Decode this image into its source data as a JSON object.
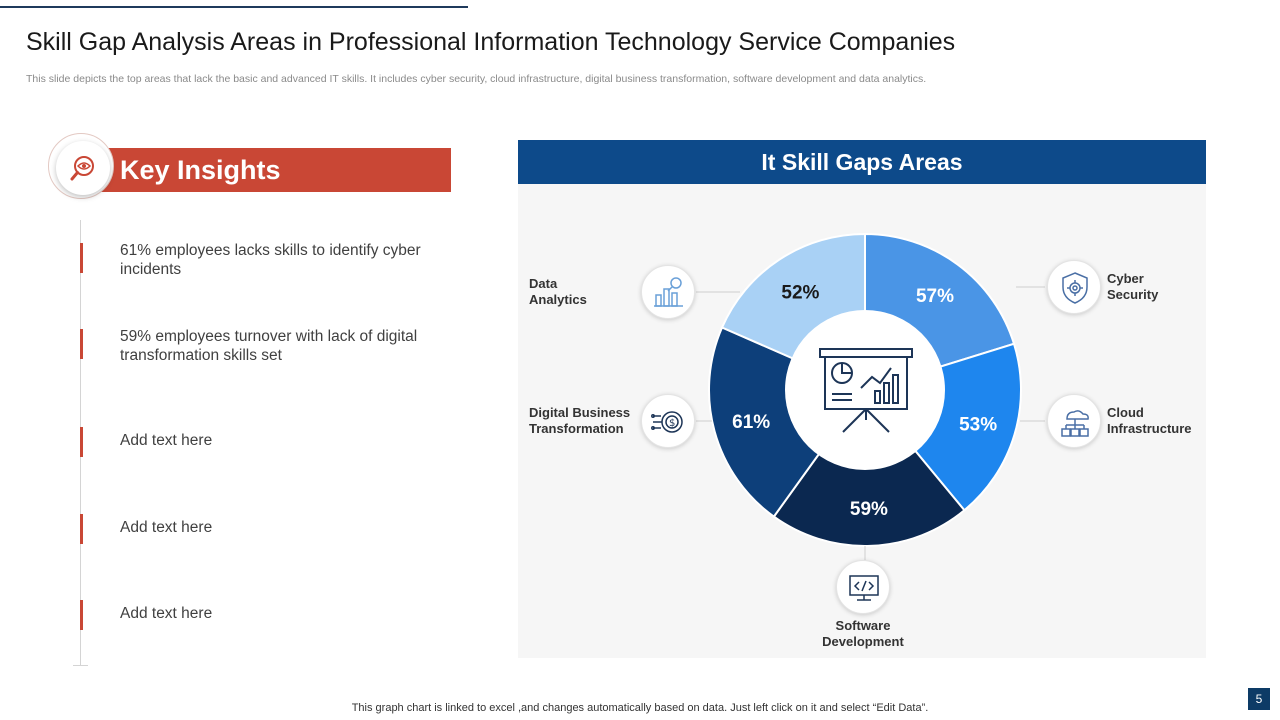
{
  "slide": {
    "title": "Skill Gap Analysis Areas in Professional Information Technology Service Companies",
    "subtitle": "This slide depicts the top areas that lack the basic and advanced IT  skills. It includes cyber security, cloud infrastructure, digital business transformation, software development and data analytics.",
    "footer": "This graph chart is linked to excel ,and changes automatically based on data. Just left click on it and select “Edit Data”.",
    "page_number": "5",
    "accent_color": "#c94735",
    "header_color": "#0d4a8a"
  },
  "key_insights": {
    "title": "Key Insights",
    "icon": "magnifier-eye-icon",
    "items": [
      "61% employees lacks skills to identify cyber incidents",
      "59% employees turnover  with lack of digital transformation skills set",
      "Add text here",
      "Add text here",
      "Add text here"
    ]
  },
  "chart_data": {
    "type": "pie",
    "variant": "donut",
    "title": "It Skill Gaps Areas",
    "center_icon": "presentation-board-icon",
    "categories": [
      "Cyber Security",
      "Cloud Infrastructure",
      "Software Development",
      "Digital Business Transformation",
      "Data Analytics"
    ],
    "values": [
      57,
      53,
      59,
      61,
      52
    ],
    "value_labels": [
      "57%",
      "53%",
      "59%",
      "61%",
      "52%"
    ],
    "colors": [
      "#4a95e6",
      "#1e86ee",
      "#0b2850",
      "#0d3f7a",
      "#a9d1f5"
    ],
    "label_colors": [
      "#ffffff",
      "#ffffff",
      "#ffffff",
      "#ffffff",
      "#1a1a1a"
    ],
    "category_labels": [
      {
        "lines": [
          "Cyber",
          "Security"
        ],
        "icon": "shield-gear-icon"
      },
      {
        "lines": [
          "Cloud",
          "Infrastructure"
        ],
        "icon": "cloud-network-icon"
      },
      {
        "lines": [
          "Software",
          "Development"
        ],
        "icon": "monitor-code-icon"
      },
      {
        "lines": [
          "Digital Business",
          "Transformation"
        ],
        "icon": "gear-dollar-icon"
      },
      {
        "lines": [
          "Data",
          "Analytics"
        ],
        "icon": "bar-chart-search-icon"
      }
    ]
  }
}
